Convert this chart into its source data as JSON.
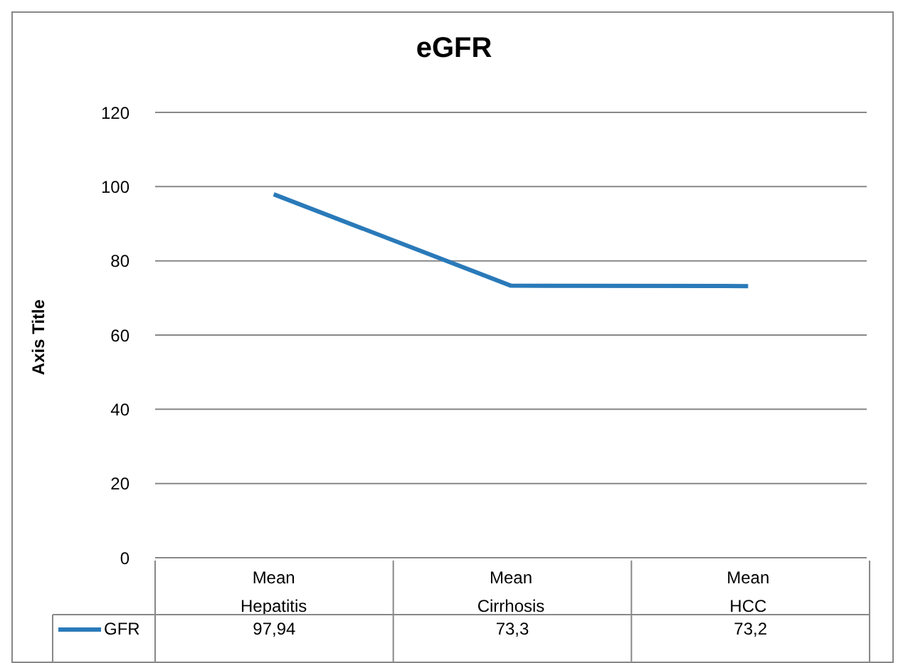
{
  "chart_data": {
    "type": "line",
    "title": "eGFR",
    "ylabel": "Axis Title",
    "categories": [
      "Mean Hepatitis",
      "Mean Cirrhosis",
      "Mean HCC"
    ],
    "series": [
      {
        "name": "GFR",
        "color": "#2a7ab9",
        "values": [
          97.94,
          73.3,
          73.2
        ],
        "value_labels": [
          "97,94",
          "73,3",
          "73,2"
        ]
      }
    ],
    "ylim": [
      0,
      120
    ],
    "yticks": [
      0,
      20,
      40,
      60,
      80,
      100,
      120
    ],
    "grid": "y",
    "legend": "bottom",
    "marker": "none"
  }
}
